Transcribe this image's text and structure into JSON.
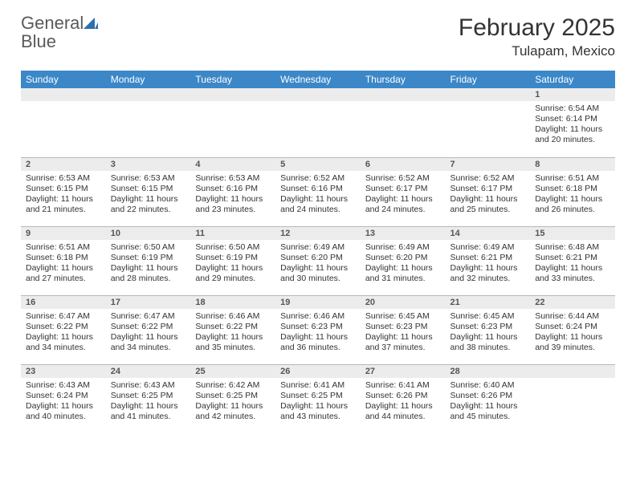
{
  "brand": {
    "name_part1": "General",
    "name_part2": "Blue"
  },
  "title": "February 2025",
  "location": "Tulapam, Mexico",
  "colors": {
    "header_bg": "#3b87c8",
    "header_text": "#ffffff",
    "daynum_bg": "#ececec",
    "text": "#333333",
    "row_border": "#b8b8b8",
    "logo_blue": "#2c6fb0",
    "logo_gray": "#5a5a5a",
    "page_bg": "#ffffff"
  },
  "weekdays": [
    "Sunday",
    "Monday",
    "Tuesday",
    "Wednesday",
    "Thursday",
    "Friday",
    "Saturday"
  ],
  "weeks": [
    [
      null,
      null,
      null,
      null,
      null,
      null,
      {
        "n": "1",
        "sunrise": "6:54 AM",
        "sunset": "6:14 PM",
        "day_h": 11,
        "day_m": 20
      }
    ],
    [
      {
        "n": "2",
        "sunrise": "6:53 AM",
        "sunset": "6:15 PM",
        "day_h": 11,
        "day_m": 21
      },
      {
        "n": "3",
        "sunrise": "6:53 AM",
        "sunset": "6:15 PM",
        "day_h": 11,
        "day_m": 22
      },
      {
        "n": "4",
        "sunrise": "6:53 AM",
        "sunset": "6:16 PM",
        "day_h": 11,
        "day_m": 23
      },
      {
        "n": "5",
        "sunrise": "6:52 AM",
        "sunset": "6:16 PM",
        "day_h": 11,
        "day_m": 24
      },
      {
        "n": "6",
        "sunrise": "6:52 AM",
        "sunset": "6:17 PM",
        "day_h": 11,
        "day_m": 24
      },
      {
        "n": "7",
        "sunrise": "6:52 AM",
        "sunset": "6:17 PM",
        "day_h": 11,
        "day_m": 25
      },
      {
        "n": "8",
        "sunrise": "6:51 AM",
        "sunset": "6:18 PM",
        "day_h": 11,
        "day_m": 26
      }
    ],
    [
      {
        "n": "9",
        "sunrise": "6:51 AM",
        "sunset": "6:18 PM",
        "day_h": 11,
        "day_m": 27
      },
      {
        "n": "10",
        "sunrise": "6:50 AM",
        "sunset": "6:19 PM",
        "day_h": 11,
        "day_m": 28
      },
      {
        "n": "11",
        "sunrise": "6:50 AM",
        "sunset": "6:19 PM",
        "day_h": 11,
        "day_m": 29
      },
      {
        "n": "12",
        "sunrise": "6:49 AM",
        "sunset": "6:20 PM",
        "day_h": 11,
        "day_m": 30
      },
      {
        "n": "13",
        "sunrise": "6:49 AM",
        "sunset": "6:20 PM",
        "day_h": 11,
        "day_m": 31
      },
      {
        "n": "14",
        "sunrise": "6:49 AM",
        "sunset": "6:21 PM",
        "day_h": 11,
        "day_m": 32
      },
      {
        "n": "15",
        "sunrise": "6:48 AM",
        "sunset": "6:21 PM",
        "day_h": 11,
        "day_m": 33
      }
    ],
    [
      {
        "n": "16",
        "sunrise": "6:47 AM",
        "sunset": "6:22 PM",
        "day_h": 11,
        "day_m": 34
      },
      {
        "n": "17",
        "sunrise": "6:47 AM",
        "sunset": "6:22 PM",
        "day_h": 11,
        "day_m": 34
      },
      {
        "n": "18",
        "sunrise": "6:46 AM",
        "sunset": "6:22 PM",
        "day_h": 11,
        "day_m": 35
      },
      {
        "n": "19",
        "sunrise": "6:46 AM",
        "sunset": "6:23 PM",
        "day_h": 11,
        "day_m": 36
      },
      {
        "n": "20",
        "sunrise": "6:45 AM",
        "sunset": "6:23 PM",
        "day_h": 11,
        "day_m": 37
      },
      {
        "n": "21",
        "sunrise": "6:45 AM",
        "sunset": "6:23 PM",
        "day_h": 11,
        "day_m": 38
      },
      {
        "n": "22",
        "sunrise": "6:44 AM",
        "sunset": "6:24 PM",
        "day_h": 11,
        "day_m": 39
      }
    ],
    [
      {
        "n": "23",
        "sunrise": "6:43 AM",
        "sunset": "6:24 PM",
        "day_h": 11,
        "day_m": 40
      },
      {
        "n": "24",
        "sunrise": "6:43 AM",
        "sunset": "6:25 PM",
        "day_h": 11,
        "day_m": 41
      },
      {
        "n": "25",
        "sunrise": "6:42 AM",
        "sunset": "6:25 PM",
        "day_h": 11,
        "day_m": 42
      },
      {
        "n": "26",
        "sunrise": "6:41 AM",
        "sunset": "6:25 PM",
        "day_h": 11,
        "day_m": 43
      },
      {
        "n": "27",
        "sunrise": "6:41 AM",
        "sunset": "6:26 PM",
        "day_h": 11,
        "day_m": 44
      },
      {
        "n": "28",
        "sunrise": "6:40 AM",
        "sunset": "6:26 PM",
        "day_h": 11,
        "day_m": 45
      },
      null
    ]
  ],
  "labels": {
    "sunrise": "Sunrise: ",
    "sunset": "Sunset: ",
    "daylight_pre": "Daylight: ",
    "hours_word": " hours and ",
    "minutes_word": " minutes."
  }
}
